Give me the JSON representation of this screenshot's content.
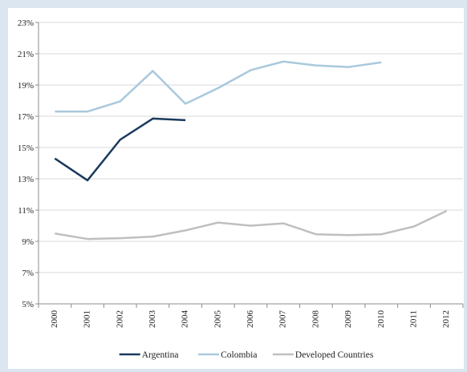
{
  "chart_data": {
    "type": "line",
    "title": "",
    "xlabel": "",
    "ylabel": "",
    "x": [
      "2000",
      "2001",
      "2002",
      "2003",
      "2004",
      "2005",
      "2006",
      "2007",
      "2008",
      "2009",
      "2010",
      "2011",
      "2012"
    ],
    "ylim": [
      5,
      23
    ],
    "yticks": [
      5,
      7,
      9,
      11,
      13,
      15,
      17,
      19,
      21,
      23
    ],
    "ytick_labels": [
      "5%",
      "7%",
      "9%",
      "11%",
      "13%",
      "15%",
      "17%",
      "19%",
      "21%",
      "23%"
    ],
    "y_unit": "%",
    "grid": true,
    "legend_position": "bottom",
    "series": [
      {
        "name": "Argentina",
        "color": "#1b3a5c",
        "values": [
          14.3,
          12.9,
          15.5,
          16.85,
          16.75,
          null,
          null,
          null,
          null,
          null,
          null,
          null,
          null
        ]
      },
      {
        "name": "Colombia",
        "color": "#a9c9dd",
        "values": [
          17.3,
          17.3,
          17.95,
          19.9,
          17.8,
          18.8,
          19.95,
          20.5,
          20.25,
          20.15,
          20.45,
          null,
          null
        ]
      },
      {
        "name": "Developed Countries",
        "color": "#bfbfbf",
        "values": [
          9.5,
          9.15,
          9.2,
          9.3,
          9.7,
          10.2,
          10.0,
          10.15,
          9.45,
          9.4,
          9.45,
          9.95,
          10.95
        ]
      }
    ]
  }
}
